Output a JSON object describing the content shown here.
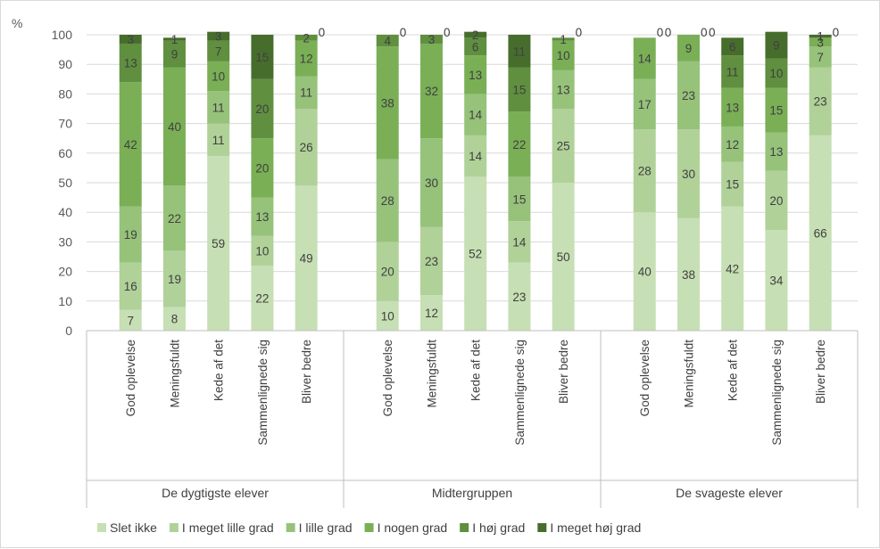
{
  "chart_data": {
    "type": "bar",
    "stacked": true,
    "y_unit": "%",
    "ylim": [
      0,
      100
    ],
    "yticks": [
      0,
      10,
      20,
      30,
      40,
      50,
      60,
      70,
      80,
      90,
      100
    ],
    "grid": true,
    "legend_position": "bottom",
    "series": [
      {
        "name": "Slet ikke",
        "color": "#c6dfb4"
      },
      {
        "name": "I meget lille grad",
        "color": "#b0d198"
      },
      {
        "name": "I lille grad",
        "color": "#96c27a"
      },
      {
        "name": "I nogen grad",
        "color": "#7aaf56"
      },
      {
        "name": "I høj grad",
        "color": "#5f8f3f"
      },
      {
        "name": "I meget høj grad",
        "color": "#476d2d"
      }
    ],
    "groups": [
      {
        "label": "De dygtigste elever",
        "bars": [
          {
            "label": "God oplevelse",
            "values": [
              7,
              16,
              19,
              42,
              13,
              3
            ]
          },
          {
            "label": "Meningsfuldt",
            "values": [
              8,
              19,
              22,
              40,
              9,
              1
            ]
          },
          {
            "label": "Kede af det",
            "values": [
              59,
              11,
              11,
              10,
              7,
              3
            ]
          },
          {
            "label": "Sammenlignede sig",
            "values": [
              22,
              10,
              13,
              20,
              20,
              15
            ]
          },
          {
            "label": "Bliver bedre",
            "values": [
              49,
              26,
              11,
              12,
              2,
              0
            ]
          }
        ]
      },
      {
        "label": "Midtergruppen",
        "bars": [
          {
            "label": "God oplevelse",
            "values": [
              10,
              20,
              28,
              38,
              4,
              0
            ]
          },
          {
            "label": "Meningsfuldt",
            "values": [
              12,
              23,
              30,
              32,
              3,
              0
            ]
          },
          {
            "label": "Kede af det",
            "values": [
              52,
              14,
              14,
              13,
              6,
              2
            ]
          },
          {
            "label": "Sammenlignede sig",
            "values": [
              23,
              14,
              15,
              22,
              15,
              11
            ]
          },
          {
            "label": "Bliver bedre",
            "values": [
              50,
              25,
              13,
              10,
              1,
              0
            ]
          }
        ]
      },
      {
        "label": "De svageste elever",
        "bars": [
          {
            "label": "God oplevelse",
            "values": [
              40,
              28,
              17,
              14,
              0,
              0
            ]
          },
          {
            "label": "Meningsfuldt",
            "values": [
              38,
              30,
              23,
              9,
              0,
              0
            ]
          },
          {
            "label": "Kede af det",
            "values": [
              42,
              15,
              12,
              13,
              11,
              6
            ]
          },
          {
            "label": "Sammenlignede sig",
            "values": [
              34,
              20,
              13,
              15,
              10,
              9
            ]
          },
          {
            "label": "Bliver bedre",
            "values": [
              66,
              23,
              7,
              3,
              0,
              1
            ]
          }
        ]
      }
    ]
  }
}
